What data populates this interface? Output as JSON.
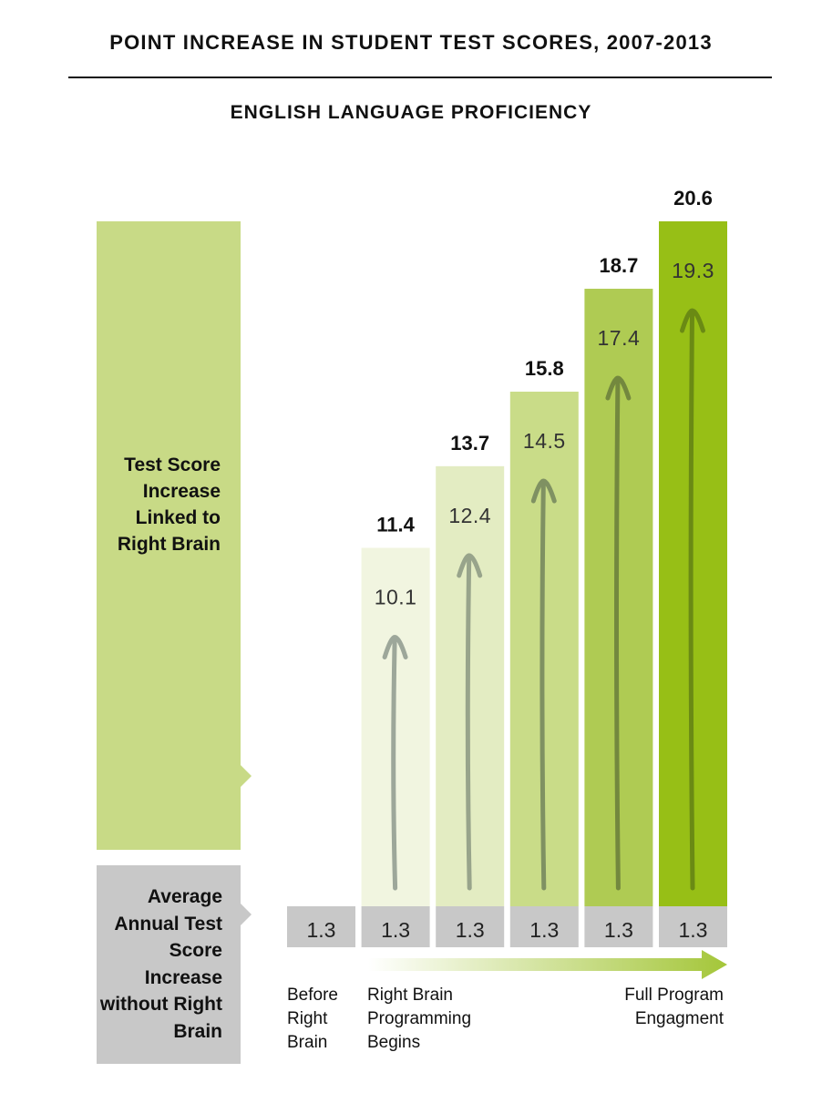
{
  "header": {
    "title": "POINT INCREASE IN STUDENT TEST SCORES, 2007-2013",
    "subtitle": "ENGLISH LANGUAGE PROFICIENCY"
  },
  "legend": {
    "linked_label": "Test Score Increase Linked to Right Brain",
    "without_label": "Average Annual Test Score Increase without Right Brain",
    "linked_color": "#c8da86",
    "without_color": "#c8c8c8"
  },
  "bottom_labels": {
    "before": "Before Right Brain",
    "begins": "Right Brain Programming Begins",
    "full": "Full Program Engagment"
  },
  "chart_data": {
    "type": "bar",
    "title": "POINT INCREASE IN STUDENT TEST SCORES, 2007-2013",
    "subtitle": "ENGLISH LANGUAGE PROFICIENCY",
    "stacked": true,
    "base_values": [
      1.3,
      1.3,
      1.3,
      1.3,
      1.3,
      1.3
    ],
    "linked_values": [
      null,
      10.1,
      12.4,
      14.5,
      17.4,
      19.3
    ],
    "totals": [
      null,
      11.4,
      13.7,
      15.8,
      18.7,
      20.6
    ],
    "base_labels": [
      "1.3",
      "1.3",
      "1.3",
      "1.3",
      "1.3",
      "1.3"
    ],
    "linked_labels": [
      "",
      "10.1",
      "12.4",
      "14.5",
      "17.4",
      "19.3"
    ],
    "total_labels": [
      "",
      "11.4",
      "13.7",
      "15.8",
      "18.7",
      "20.6"
    ],
    "bar_colors": [
      "#c8c8c8",
      "#f1f5e0",
      "#e3ecc2",
      "#c9dc88",
      "#afcb53",
      "#97bf16"
    ],
    "arrow_colors": [
      "",
      "#9da79a",
      "#98a48b",
      "#7f9162",
      "#73883e",
      "#6a8a14"
    ],
    "base_color": "#c8c8c8",
    "progress_arrow_color": "#a4c639",
    "ylim": [
      0,
      20.6
    ],
    "grid": false
  }
}
